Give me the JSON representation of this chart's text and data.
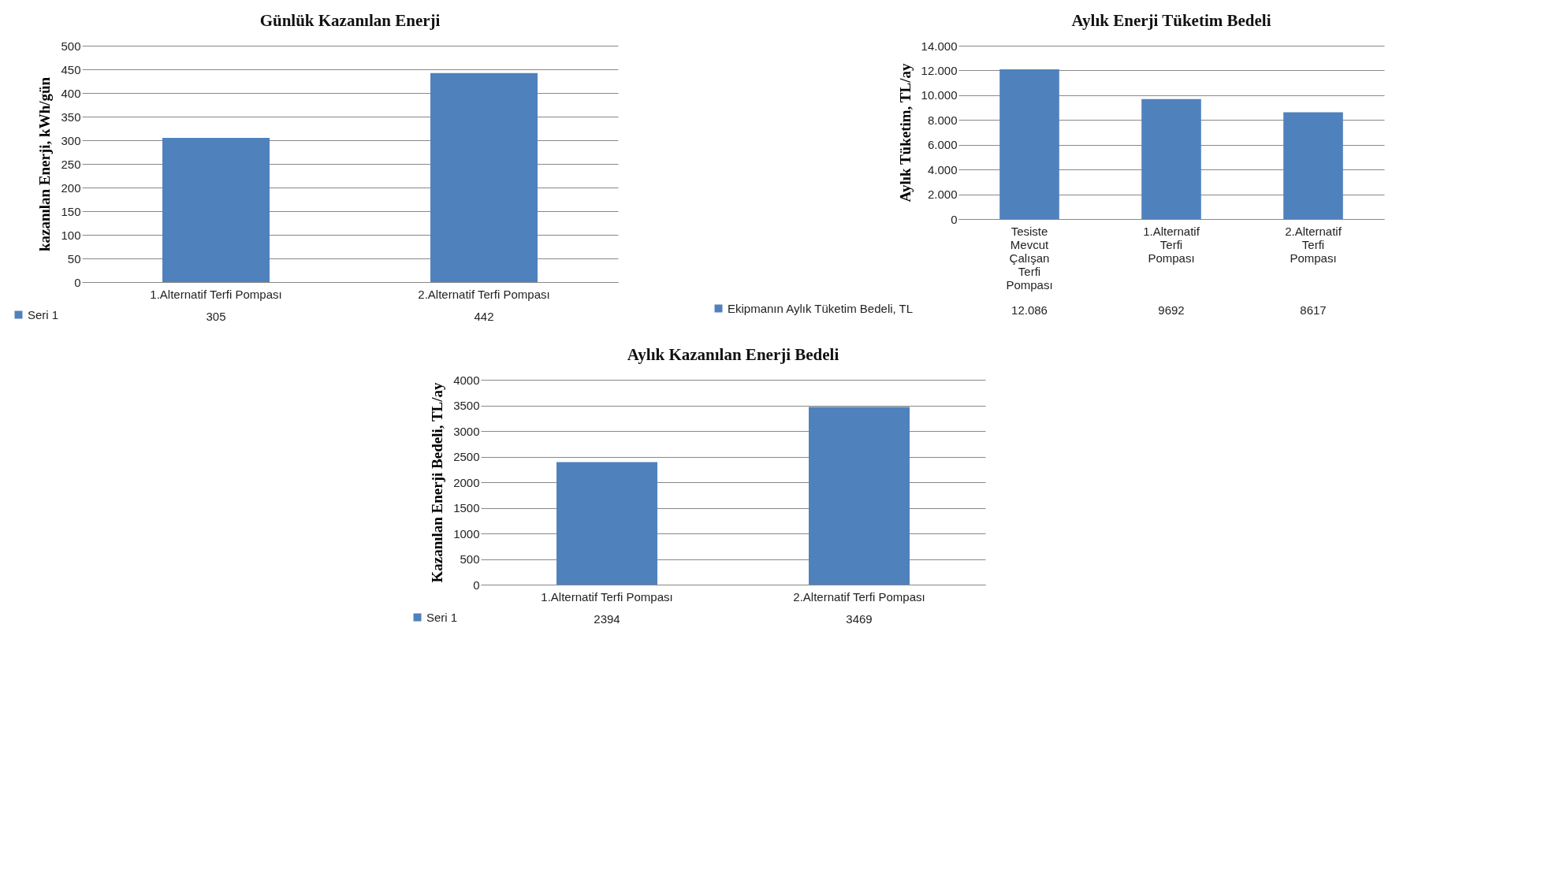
{
  "chart_data": [
    {
      "type": "bar",
      "title": "Günlük Kazanılan Enerji",
      "ylabel": "kazanılan Enerji, kWh/gün",
      "categories": [
        "1.Alternatif Terfi Pompası",
        "2.Alternatif Terfi Pompası"
      ],
      "series": [
        {
          "name": "Seri 1",
          "color": "#4f81bd",
          "values": [
            305,
            442
          ]
        }
      ],
      "ylim": [
        0,
        500
      ],
      "yticks": [
        0,
        50,
        100,
        150,
        200,
        250,
        300,
        350,
        400,
        450,
        500
      ],
      "grid": "y",
      "legend": "bottom",
      "data_labels": true
    },
    {
      "type": "bar",
      "title": "Aylık Enerji Tüketim Bedeli",
      "ylabel": "Aylık Tüketim, TL/ay",
      "categories": [
        "Tesiste Mevcut Çalışan Terfi Pompası",
        "1.Alternatif Terfi Pompası",
        "2.Alternatif Terfi Pompası"
      ],
      "series": [
        {
          "name": "Ekipmanın Aylık Tüketim Bedeli, TL",
          "color": "#4f81bd",
          "values": [
            12086,
            9692,
            8617
          ],
          "value_labels": [
            "12.086",
            "9692",
            "8617"
          ]
        }
      ],
      "ylim": [
        0,
        14000
      ],
      "yticks": [
        0,
        {
          "value": 2000,
          "label": "2.000"
        },
        {
          "value": 4000,
          "label": "4.000"
        },
        {
          "value": 6000,
          "label": "6.000"
        },
        {
          "value": 8000,
          "label": "8.000"
        },
        {
          "value": 10000,
          "label": "10.000"
        },
        {
          "value": 12000,
          "label": "12.000"
        },
        {
          "value": 14000,
          "label": "14.000"
        }
      ],
      "grid": "y",
      "legend": "bottom"
    },
    {
      "type": "bar",
      "title": "Aylık Kazanılan Enerji Bedeli",
      "ylabel": "Kazanılan Enerji Bedeli, TL/ay",
      "categories": [
        "1.Alternatif Terfi Pompası",
        "2.Alternatif Terfi Pompası"
      ],
      "series": [
        {
          "name": "Seri 1",
          "color": "#4f81bd",
          "values": [
            2394,
            3469
          ]
        }
      ],
      "ylim": [
        0,
        4000
      ],
      "yticks": [
        0,
        500,
        1000,
        1500,
        2000,
        2500,
        3000,
        3500,
        4000
      ],
      "grid": "y",
      "legend": "bottom",
      "data_labels": true
    }
  ]
}
